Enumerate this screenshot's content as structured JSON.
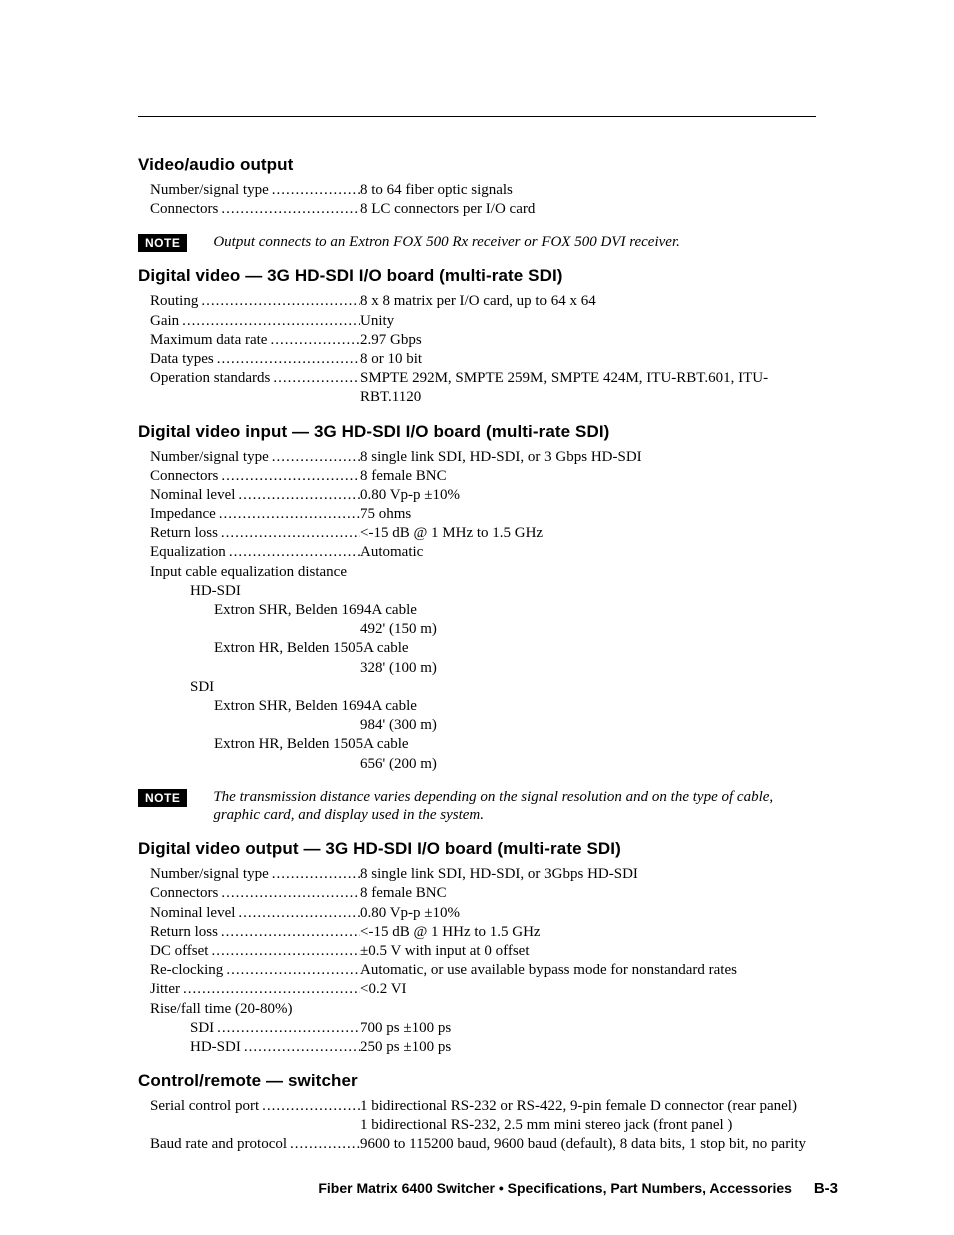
{
  "sections": {
    "video_audio_output": {
      "title": "Video/audio output",
      "rows": [
        {
          "label": "Number/signal type",
          "value": "8 to 64 fiber optic signals"
        },
        {
          "label": "Connectors",
          "value": "8 LC connectors per I/O card"
        }
      ],
      "note": "Output connects to an Extron FOX 500 Rx receiver or FOX 500 DVI receiver."
    },
    "digital_video_3g": {
      "title": "Digital video — 3G HD-SDI I/O board (multi-rate SDI)",
      "rows": [
        {
          "label": "Routing",
          "value": "8 x 8 matrix per I/O card, up to 64 x 64"
        },
        {
          "label": "Gain",
          "value": "Unity"
        },
        {
          "label": "Maximum data rate",
          "value": "2.97 Gbps"
        },
        {
          "label": "Data types",
          "value": "8 or 10 bit"
        },
        {
          "label": "Operation standards",
          "value": "SMPTE 292M, SMPTE 259M, SMPTE 424M, ITU-RBT.601, ITU-RBT.1120"
        }
      ]
    },
    "digital_video_input": {
      "title": "Digital video input — 3G HD-SDI I/O board (multi-rate SDI)",
      "rows": [
        {
          "label": "Number/signal type",
          "value": "8 single link SDI, HD-SDI, or 3 Gbps HD-SDI"
        },
        {
          "label": "Connectors",
          "value": "8 female BNC"
        },
        {
          "label": "Nominal level",
          "value": "0.80 Vp-p ±10%"
        },
        {
          "label": "Impedance",
          "value": "75 ohms"
        },
        {
          "label": "Return loss",
          "value": "<-15 dB @ 1 MHz to 1.5 GHz"
        },
        {
          "label": "Equalization",
          "value": "Automatic"
        }
      ],
      "eq_heading": "Input cable equalization distance",
      "hd_sdi_label": "HD-SDI",
      "sdi_label": "SDI",
      "cable1": "Extron SHR, Belden 1694A cable",
      "cable2": "Extron HR, Belden 1505A cable",
      "dist_hd_1": "492' (150 m)",
      "dist_hd_2": "328' (100 m)",
      "dist_sdi_1": "984' (300 m)",
      "dist_sdi_2": "656' (200 m)",
      "note": "The transmission distance varies depending on the signal resolution and on the type of cable, graphic card, and display used in the system."
    },
    "digital_video_output": {
      "title": "Digital video output — 3G HD-SDI I/O board (multi-rate SDI)",
      "rows": [
        {
          "label": "Number/signal type",
          "value": "8 single link SDI, HD-SDI, or 3Gbps HD-SDI"
        },
        {
          "label": "Connectors",
          "value": "8 female BNC"
        },
        {
          "label": "Nominal level",
          "value": "0.80 Vp-p ±10%"
        },
        {
          "label": "Return loss",
          "value": "<-15 dB @ 1 HHz to 1.5 GHz"
        },
        {
          "label": "DC offset",
          "value": "±0.5 V with input at 0 offset"
        },
        {
          "label": "Re-clocking",
          "value": "Automatic, or use available bypass mode for nonstandard rates"
        },
        {
          "label": "Jitter",
          "value": "<0.2 VI"
        }
      ],
      "rise_fall_heading": "Rise/fall time (20-80%)",
      "rise_rows": [
        {
          "label": "SDI",
          "value": "700 ps ±100 ps"
        },
        {
          "label": "HD-SDI",
          "value": "250 ps ±100 ps"
        }
      ]
    },
    "control_remote": {
      "title": "Control/remote — switcher",
      "serial_label": "Serial control port",
      "serial_value1": "1 bidirectional RS-232 or RS-422, 9-pin female D connector (rear panel)",
      "serial_value2": "1 bidirectional RS-232, 2.5 mm mini stereo jack (front panel )",
      "baud_label": "Baud rate and protocol",
      "baud_value": "9600 to 115200 baud, 9600 baud (default), 8 data bits, 1 stop bit, no parity"
    }
  },
  "note_badge": "NOTE",
  "footer": {
    "text": "Fiber Matrix 6400 Switcher • Specifications, Part Numbers, Accessories",
    "page": "B-3"
  }
}
